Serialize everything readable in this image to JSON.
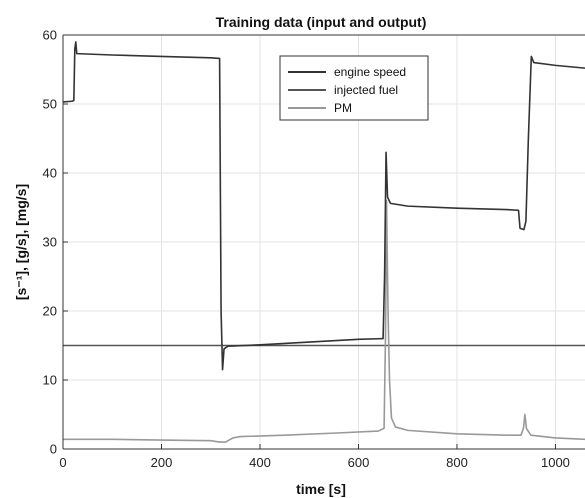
{
  "chart_data": {
    "type": "line",
    "title": "Training data (input and output)",
    "xlabel": "time [s]",
    "ylabel": "[s⁻¹], [g/s], [mg/s]",
    "xlim": [
      0,
      1060
    ],
    "ylim": [
      0,
      60
    ],
    "xticks": [
      0,
      200,
      400,
      600,
      800,
      1000
    ],
    "yticks": [
      0,
      10,
      20,
      30,
      40,
      50,
      60
    ],
    "grid": true,
    "legend_position": "top-center",
    "series": [
      {
        "name": "engine speed",
        "color": "#333333",
        "points": [
          [
            0,
            50.3
          ],
          [
            18,
            50.4
          ],
          [
            22,
            50.5
          ],
          [
            24,
            58.0
          ],
          [
            26,
            59.0
          ],
          [
            28,
            57.3
          ],
          [
            100,
            57.1
          ],
          [
            200,
            56.9
          ],
          [
            300,
            56.7
          ],
          [
            318,
            56.6
          ],
          [
            321,
            20.0
          ],
          [
            324,
            11.5
          ],
          [
            327,
            14.5
          ],
          [
            335,
            14.9
          ],
          [
            400,
            15.1
          ],
          [
            500,
            15.5
          ],
          [
            600,
            15.9
          ],
          [
            650,
            16.0
          ],
          [
            653,
            25.0
          ],
          [
            656,
            43.0
          ],
          [
            659,
            36.5
          ],
          [
            665,
            35.6
          ],
          [
            700,
            35.2
          ],
          [
            800,
            34.9
          ],
          [
            900,
            34.7
          ],
          [
            925,
            34.6
          ],
          [
            928,
            32.0
          ],
          [
            936,
            31.8
          ],
          [
            940,
            33.0
          ],
          [
            945,
            45.0
          ],
          [
            951,
            56.9
          ],
          [
            956,
            56.0
          ],
          [
            1000,
            55.6
          ],
          [
            1060,
            55.2
          ]
        ]
      },
      {
        "name": "injected fuel",
        "color": "#555555",
        "points": [
          [
            0,
            15.0
          ],
          [
            1060,
            15.0
          ]
        ]
      },
      {
        "name": "PM",
        "color": "#999999",
        "points": [
          [
            0,
            1.4
          ],
          [
            100,
            1.4
          ],
          [
            200,
            1.3
          ],
          [
            300,
            1.2
          ],
          [
            318,
            1.0
          ],
          [
            330,
            1.0
          ],
          [
            345,
            1.6
          ],
          [
            360,
            1.8
          ],
          [
            450,
            2.0
          ],
          [
            550,
            2.3
          ],
          [
            640,
            2.6
          ],
          [
            652,
            3.0
          ],
          [
            655,
            17.0
          ],
          [
            657,
            36.0
          ],
          [
            660,
            20.0
          ],
          [
            663,
            10.0
          ],
          [
            667,
            4.5
          ],
          [
            675,
            3.2
          ],
          [
            700,
            2.7
          ],
          [
            800,
            2.2
          ],
          [
            900,
            2.0
          ],
          [
            930,
            2.0
          ],
          [
            935,
            3.0
          ],
          [
            938,
            5.0
          ],
          [
            941,
            3.0
          ],
          [
            950,
            2.0
          ],
          [
            1000,
            1.6
          ],
          [
            1060,
            1.4
          ]
        ]
      }
    ]
  }
}
